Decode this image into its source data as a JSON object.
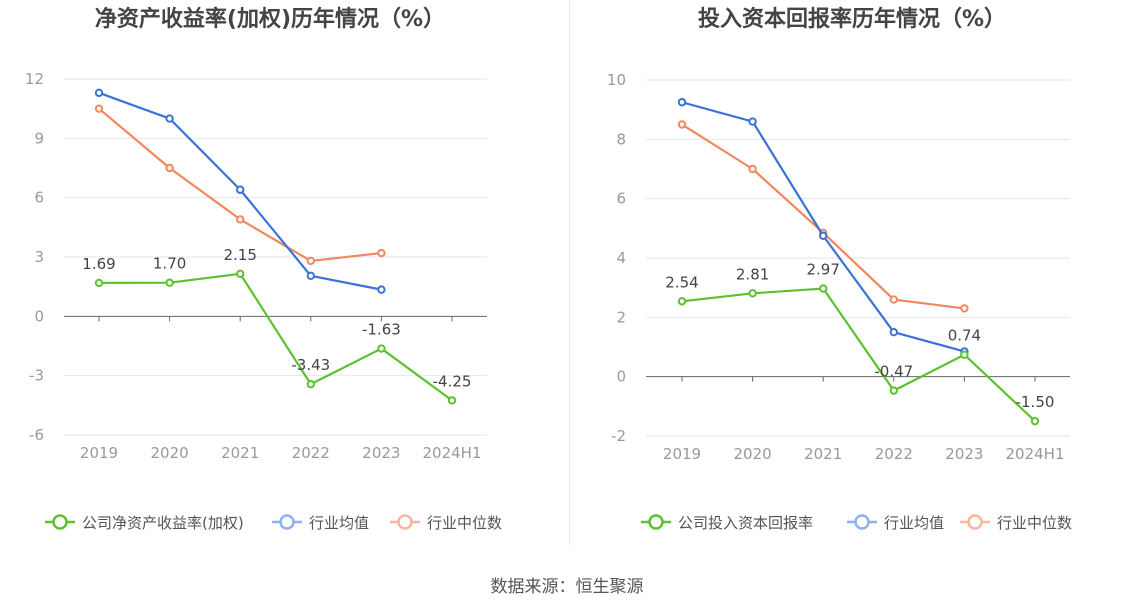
{
  "source_label": "数据来源：恒生聚源",
  "colors": {
    "company": "#5cc12f",
    "avg": "#3a72d8",
    "median": "#f2875d",
    "legend_avg": "#8fb1ee",
    "legend_median": "#f7b79e"
  },
  "chart_data": [
    {
      "type": "line",
      "title": "净资产收益率(加权)历年情况（%）",
      "categories": [
        "2019",
        "2020",
        "2021",
        "2022",
        "2023",
        "2024H1"
      ],
      "ylim": [
        -6,
        12
      ],
      "yticks": [
        12,
        9,
        6,
        3,
        0,
        -3,
        -6
      ],
      "grid": true,
      "legend": "bottom",
      "series": [
        {
          "name": "公司净资产收益率(加权)",
          "key": "company",
          "values": [
            1.69,
            1.7,
            2.15,
            -3.43,
            -1.63,
            -4.25
          ],
          "labels": [
            "1.69",
            "1.70",
            "2.15",
            "-3.43",
            "-1.63",
            "-4.25"
          ]
        },
        {
          "name": "行业均值",
          "key": "avg",
          "values": [
            11.3,
            10.0,
            6.4,
            2.05,
            1.35,
            null
          ]
        },
        {
          "name": "行业中位数",
          "key": "median",
          "values": [
            10.5,
            7.5,
            4.9,
            2.8,
            3.2,
            null
          ]
        }
      ]
    },
    {
      "type": "line",
      "title": "投入资本回报率历年情况（%）",
      "categories": [
        "2019",
        "2020",
        "2021",
        "2022",
        "2023",
        "2024H1"
      ],
      "ylim": [
        -2,
        10
      ],
      "yticks": [
        10,
        8,
        6,
        4,
        2,
        0,
        -2
      ],
      "grid": true,
      "legend": "bottom",
      "series": [
        {
          "name": "公司投入资本回报率",
          "key": "company",
          "values": [
            2.54,
            2.81,
            2.97,
            -0.47,
            0.74,
            -1.5
          ],
          "labels": [
            "2.54",
            "2.81",
            "2.97",
            "-0.47",
            "0.74",
            "-1.50"
          ]
        },
        {
          "name": "行业均值",
          "key": "avg",
          "values": [
            9.25,
            8.6,
            4.75,
            1.5,
            0.85,
            null
          ]
        },
        {
          "name": "行业中位数",
          "key": "median",
          "values": [
            8.5,
            7.0,
            4.85,
            2.6,
            2.3,
            null
          ]
        }
      ]
    }
  ]
}
